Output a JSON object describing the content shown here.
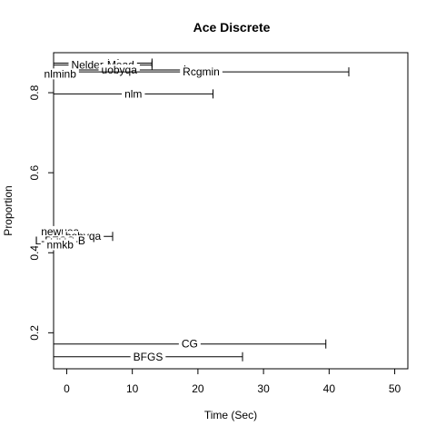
{
  "chart_data": {
    "type": "interval",
    "title": "Ace Discrete",
    "xlabel": "Time (Sec)",
    "ylabel": "Proportion",
    "xlim": [
      -2,
      52
    ],
    "ylim": [
      0.11,
      0.9
    ],
    "xticks": [
      "0",
      "10",
      "20",
      "30",
      "40",
      "50"
    ],
    "yticks": [
      "0.2",
      "0.4",
      "0.6",
      "0.8"
    ],
    "grid": false,
    "legend": "none",
    "series": [
      {
        "name": "ucminf",
        "proportion": 0.874,
        "time_end": 13
      },
      {
        "name": "Nelder-Mead",
        "proportion": 0.869,
        "time_end": 13
      },
      {
        "name": "uobyqa",
        "proportion": 0.857,
        "time_end": 18
      },
      {
        "name": "Rcgmin",
        "proportion": 0.852,
        "time_end": 43
      },
      {
        "name": "nlminb",
        "proportion": 0.847,
        "time_end": 0
      },
      {
        "name": "nlm",
        "proportion": 0.797,
        "time_end": 22.3
      },
      {
        "name": "newuoa",
        "proportion": 0.453,
        "time_end": 0
      },
      {
        "name": "bobyqa",
        "proportion": 0.441,
        "time_end": 7
      },
      {
        "name": "L-BFGS-B",
        "proportion": 0.43,
        "time_end": 0
      },
      {
        "name": "hjkb",
        "proportion": 0.425,
        "time_end": 0
      },
      {
        "name": "nmkb",
        "proportion": 0.42,
        "time_end": 0
      },
      {
        "name": "CG",
        "proportion": 0.172,
        "time_end": 39.5
      },
      {
        "name": "BFGS",
        "proportion": 0.14,
        "time_end": 26.8
      }
    ]
  }
}
